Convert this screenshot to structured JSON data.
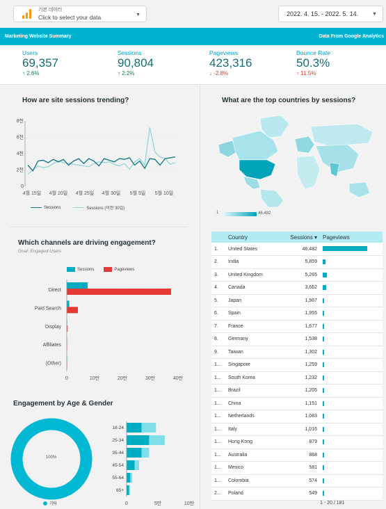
{
  "data_source": {
    "small": "기본 데이터",
    "main": "Click to select your data"
  },
  "date_range": "2022. 4. 15. - 2022. 5. 14.",
  "header": {
    "left": "Marketing Website Summary",
    "right": "Data From Google Analytics"
  },
  "metrics": [
    {
      "label": "Users",
      "value": "69,357",
      "delta": "2.6%",
      "dir": "up"
    },
    {
      "label": "Sessions",
      "value": "90,804",
      "delta": "2.2%",
      "dir": "up"
    },
    {
      "label": "Pageviews",
      "value": "423,316",
      "delta": "-2.8%",
      "dir": "down"
    },
    {
      "label": "Bounce Rate",
      "value": "50.3%",
      "delta": "11.5%",
      "dir": "up-red"
    }
  ],
  "sessions_chart": {
    "title": "How are site sessions trending?",
    "legend": [
      "Sessions",
      "Sessions (이전 30일)"
    ]
  },
  "map_panel": {
    "title": "What are the top countries by sessions?",
    "legend_min": "1",
    "legend_max": "46,482"
  },
  "channels_panel": {
    "title": "Which channels are driving engagement?",
    "subtitle": "Goal: Engaged Users",
    "legend": [
      "Sessions",
      "Pageviews"
    ]
  },
  "age_gender_panel": {
    "title": "Engagement by Age & Gender",
    "donut_label": "100%",
    "donut_legend": "기타"
  },
  "table": {
    "headers": [
      "Country",
      "Sessions ▾",
      "Pageviews"
    ],
    "rows": [
      {
        "rank": "1.",
        "country": "United States",
        "sessions": "46,482",
        "pv": 1.0
      },
      {
        "rank": "2.",
        "country": "India",
        "sessions": "5,859",
        "pv": 0.07
      },
      {
        "rank": "3.",
        "country": "United Kingdom",
        "sessions": "5,265",
        "pv": 0.1
      },
      {
        "rank": "4.",
        "country": "Canada",
        "sessions": "3,662",
        "pv": 0.08
      },
      {
        "rank": "5.",
        "country": "Japan",
        "sessions": "1,967",
        "pv": 0.02
      },
      {
        "rank": "6.",
        "country": "Spain",
        "sessions": "1,955",
        "pv": 0.02
      },
      {
        "rank": "7.",
        "country": "France",
        "sessions": "1,677",
        "pv": 0.02
      },
      {
        "rank": "8.",
        "country": "Germany",
        "sessions": "1,538",
        "pv": 0.02
      },
      {
        "rank": "9.",
        "country": "Taiwan",
        "sessions": "1,302",
        "pv": 0.02
      },
      {
        "rank": "1...",
        "country": "Singapore",
        "sessions": "1,259",
        "pv": 0.02
      },
      {
        "rank": "1...",
        "country": "South Korea",
        "sessions": "1,232",
        "pv": 0.02
      },
      {
        "rank": "1...",
        "country": "Brazil",
        "sessions": "1,205",
        "pv": 0.02
      },
      {
        "rank": "1...",
        "country": "China",
        "sessions": "1,151",
        "pv": 0.02
      },
      {
        "rank": "1...",
        "country": "Netherlands",
        "sessions": "1,083",
        "pv": 0.02
      },
      {
        "rank": "1...",
        "country": "Italy",
        "sessions": "1,016",
        "pv": 0.02
      },
      {
        "rank": "1...",
        "country": "Hong Kong",
        "sessions": "879",
        "pv": 0.02
      },
      {
        "rank": "1...",
        "country": "Australia",
        "sessions": "868",
        "pv": 0.02
      },
      {
        "rank": "1...",
        "country": "Mexico",
        "sessions": "581",
        "pv": 0.02
      },
      {
        "rank": "1...",
        "country": "Colombia",
        "sessions": "574",
        "pv": 0.02
      },
      {
        "rank": "2...",
        "country": "Poland",
        "sessions": "549",
        "pv": 0.02
      }
    ],
    "pager": "1 - 20 / 181"
  },
  "chart_data": [
    {
      "type": "line",
      "title": "How are site sessions trending?",
      "x_ticks": [
        "4월 15일",
        "4월 20일",
        "4월 25일",
        "4월 30일",
        "5월 5일",
        "5월 10일"
      ],
      "y_ticks": [
        "0",
        "2천",
        "4천",
        "6천",
        "8천"
      ],
      "ylim": [
        0,
        8000
      ],
      "series": [
        {
          "name": "Sessions",
          "color": "#1a7b86",
          "values": [
            2600,
            1900,
            3100,
            3200,
            2900,
            3300,
            3000,
            3300,
            2600,
            3100,
            3400,
            2800,
            3400,
            3100,
            2500,
            3400,
            3200,
            3000,
            3400,
            3300,
            3500,
            2600,
            3100,
            2200,
            3400,
            3300,
            2600,
            3400,
            3500,
            3600
          ]
        },
        {
          "name": "Sessions (이전 30일)",
          "color": "#9bd6d9",
          "values": [
            1500,
            2000,
            2500,
            2300,
            2400,
            2800,
            3100,
            2900,
            2800,
            2700,
            2600,
            2500,
            2400,
            2800,
            3000,
            2900,
            3000,
            2700,
            2500,
            2800,
            2100,
            3000,
            3400,
            2600,
            7200,
            4200,
            3600,
            3400,
            2700,
            2900
          ]
        }
      ]
    },
    {
      "type": "bar",
      "orientation": "horizontal",
      "title": "Which channels are driving engagement?",
      "categories": [
        "Direct",
        "Paid Search",
        "Display",
        "Affiliates",
        "(Other)"
      ],
      "x_ticks": [
        "0",
        "10만",
        "20만",
        "30만",
        "40만"
      ],
      "xlim": [
        0,
        400000
      ],
      "series": [
        {
          "name": "Sessions",
          "color": "#00acc1",
          "values": [
            75000,
            9000,
            1500,
            600,
            300
          ]
        },
        {
          "name": "Pageviews",
          "color": "#e53935",
          "values": [
            375000,
            40000,
            3000,
            1000,
            500
          ]
        }
      ]
    },
    {
      "type": "bar",
      "orientation": "horizontal",
      "title": "Engagement by Age & Gender",
      "categories": [
        "18-24",
        "25-34",
        "35-44",
        "45-54",
        "55-64",
        "65+"
      ],
      "x_ticks": [
        "0",
        "5만",
        "10만"
      ],
      "xlim": [
        0,
        100000
      ],
      "series": [
        {
          "name": "Sessions",
          "color": "#00acc1",
          "values": [
            24000,
            36000,
            24000,
            13000,
            6000,
            4000
          ]
        },
        {
          "name": "Pageviews",
          "color": "#80deea",
          "values": [
            23000,
            25000,
            12000,
            7000,
            3000,
            1500
          ]
        }
      ]
    }
  ]
}
